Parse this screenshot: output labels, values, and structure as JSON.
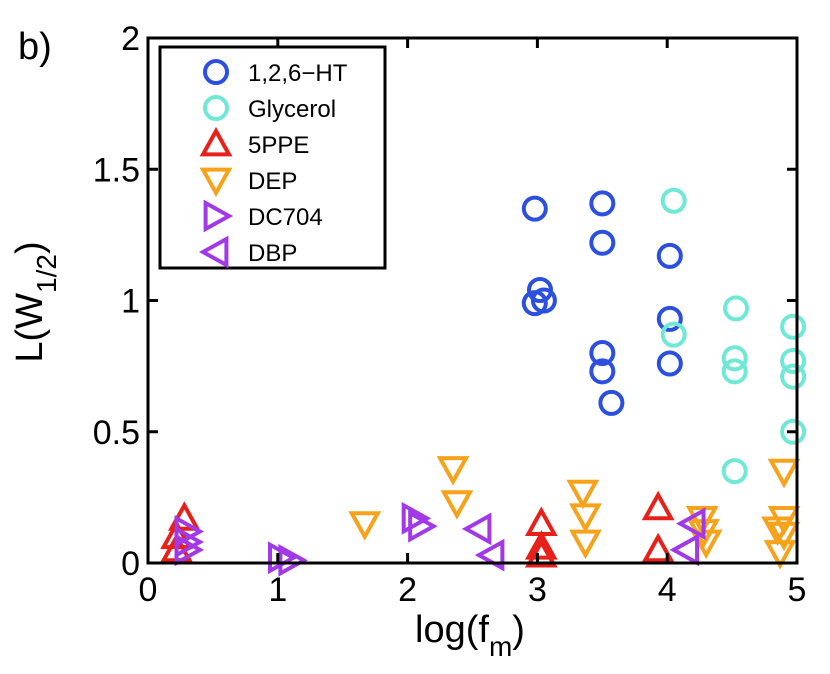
{
  "chart_data": {
    "type": "scatter",
    "panel_label": "b)",
    "xlabel": {
      "main": "log(f",
      "sub": "m",
      "close": ")"
    },
    "ylabel": {
      "main": "L(W",
      "sub": "1/2",
      "close": ")"
    },
    "xlim": [
      0,
      5
    ],
    "ylim": [
      0,
      2
    ],
    "xticks": [
      0,
      1,
      2,
      3,
      4,
      5
    ],
    "yticks": [
      0,
      0.5,
      1,
      1.5,
      2
    ],
    "ytick_labels": [
      "0",
      "0.5",
      "1",
      "1.5",
      "2"
    ],
    "xtick_labels": [
      "0",
      "1",
      "2",
      "3",
      "4",
      "5"
    ],
    "grid": false,
    "legend_position": "top-left",
    "series": [
      {
        "name": "1,2,6−HT",
        "marker": "circle",
        "color": "#2b4fe0",
        "points": [
          [
            2.98,
            1.35
          ],
          [
            3.02,
            1.04
          ],
          [
            3.05,
            1.0
          ],
          [
            2.98,
            0.99
          ],
          [
            3.5,
            1.37
          ],
          [
            3.5,
            1.22
          ],
          [
            3.5,
            0.8
          ],
          [
            3.5,
            0.73
          ],
          [
            3.57,
            0.61
          ],
          [
            4.02,
            1.17
          ],
          [
            4.02,
            0.93
          ],
          [
            4.02,
            0.76
          ]
        ]
      },
      {
        "name": "Glycerol",
        "marker": "circle",
        "color": "#6fe8d6",
        "points": [
          [
            4.05,
            1.38
          ],
          [
            4.05,
            0.87
          ],
          [
            4.53,
            0.97
          ],
          [
            4.52,
            0.78
          ],
          [
            4.52,
            0.73
          ],
          [
            4.52,
            0.35
          ],
          [
            4.97,
            0.9
          ],
          [
            4.97,
            0.77
          ],
          [
            4.97,
            0.71
          ],
          [
            4.97,
            0.5
          ]
        ]
      },
      {
        "name": "5PPE",
        "marker": "triangle-up",
        "color": "#e8201a",
        "points": [
          [
            0.28,
            0.17
          ],
          [
            0.22,
            0.1
          ],
          [
            0.22,
            0.05
          ],
          [
            3.03,
            0.15
          ],
          [
            3.03,
            0.06
          ],
          [
            3.03,
            0.03
          ],
          [
            3.93,
            0.21
          ],
          [
            3.93,
            0.05
          ]
        ]
      },
      {
        "name": "DEP",
        "marker": "triangle-down",
        "color": "#f7a21b",
        "points": [
          [
            1.67,
            0.15
          ],
          [
            2.35,
            0.36
          ],
          [
            2.38,
            0.23
          ],
          [
            3.35,
            0.27
          ],
          [
            3.37,
            0.18
          ],
          [
            3.37,
            0.08
          ],
          [
            4.27,
            0.17
          ],
          [
            4.3,
            0.08
          ],
          [
            4.28,
            0.12
          ],
          [
            4.9,
            0.35
          ],
          [
            4.9,
            0.17
          ],
          [
            4.85,
            0.13
          ],
          [
            4.9,
            0.11
          ],
          [
            4.87,
            0.04
          ]
        ]
      },
      {
        "name": "DC704",
        "marker": "triangle-right",
        "color": "#a239e8",
        "points": [
          [
            0.3,
            0.12
          ],
          [
            0.3,
            0.08
          ],
          [
            0.3,
            0.05
          ],
          [
            1.02,
            0.02
          ],
          [
            1.1,
            0.01
          ],
          [
            2.05,
            0.17
          ],
          [
            2.1,
            0.14
          ]
        ]
      },
      {
        "name": "DBP",
        "marker": "triangle-left",
        "color": "#a239e8",
        "points": [
          [
            2.55,
            0.13
          ],
          [
            2.65,
            0.03
          ],
          [
            4.2,
            0.15
          ],
          [
            4.15,
            0.05
          ]
        ]
      }
    ]
  }
}
